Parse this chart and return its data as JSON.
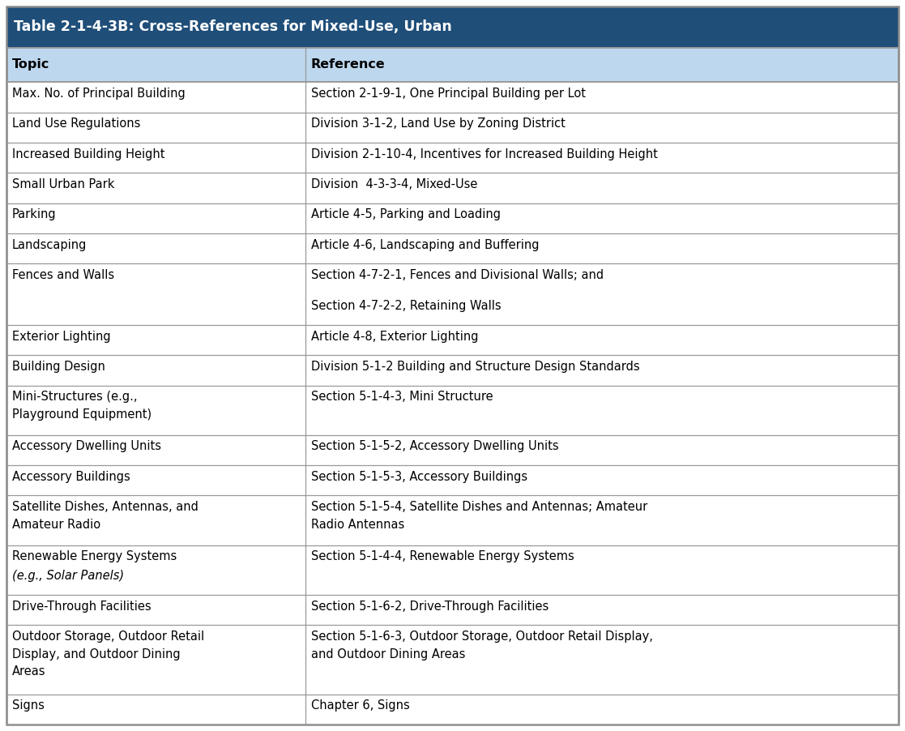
{
  "title": "Table 2-1-4-3B: Cross-References for Mixed-Use, Urban",
  "title_bg": "#1f4e79",
  "title_color": "#ffffff",
  "header_bg": "#bdd7ee",
  "header_color": "#000000",
  "col1_header": "Topic",
  "col2_header": "Reference",
  "border_color": "#999999",
  "outer_border_color": "#888888",
  "col_split": 0.335,
  "font_size": 10.5,
  "title_font_size": 12.5,
  "header_font_size": 11.5,
  "rows": [
    {
      "col1": "Max. No. of Principal Building",
      "col2": "Section 2-1-9-1, One Principal Building per Lot",
      "col1_lines": 1,
      "col2_lines": 1
    },
    {
      "col1": "Land Use Regulations",
      "col2": "Division 3-1-2, Land Use by Zoning District",
      "col1_lines": 1,
      "col2_lines": 1
    },
    {
      "col1": "Increased Building Height",
      "col2": "Division 2-1-10-4, Incentives for Increased Building Height",
      "col1_lines": 1,
      "col2_lines": 1
    },
    {
      "col1": "Small Urban Park",
      "col2": "Division  4-3-3-4, Mixed-Use",
      "col1_lines": 1,
      "col2_lines": 1
    },
    {
      "col1": "Parking",
      "col2": "Article 4-5, Parking and Loading",
      "col1_lines": 1,
      "col2_lines": 1
    },
    {
      "col1": "Landscaping",
      "col2": "Article 4-6, Landscaping and Buffering",
      "col1_lines": 1,
      "col2_lines": 1
    },
    {
      "col1": "Fences and Walls",
      "col2": "Section 4-7-2-1, Fences and Divisional Walls; and\nSection 4-7-2-2, Retaining Walls",
      "col1_lines": 1,
      "col2_lines": 2,
      "col2_extra_gap": true
    },
    {
      "col1": "Exterior Lighting",
      "col2": "Article 4-8, Exterior Lighting",
      "col1_lines": 1,
      "col2_lines": 1
    },
    {
      "col1": "Building Design",
      "col2": "Division 5-1-2 Building and Structure Design Standards",
      "col1_lines": 1,
      "col2_lines": 1
    },
    {
      "col1": "Mini-Structures (e.g.,\nPlayground Equipment)",
      "col2": "Section 5-1-4-3, Mini Structure",
      "col1_lines": 2,
      "col2_lines": 1
    },
    {
      "col1": "Accessory Dwelling Units",
      "col2": "Section 5-1-5-2, Accessory Dwelling Units",
      "col1_lines": 1,
      "col2_lines": 1
    },
    {
      "col1": "Accessory Buildings",
      "col2": "Section 5-1-5-3, Accessory Buildings",
      "col1_lines": 1,
      "col2_lines": 1
    },
    {
      "col1": "Satellite Dishes, Antennas, and\nAmateur Radio",
      "col2": "Section 5-1-5-4, Satellite Dishes and Antennas; Amateur\nRadio Antennas",
      "col1_lines": 2,
      "col2_lines": 2
    },
    {
      "col1": "Renewable Energy Systems\n(e.g., Solar Panels)",
      "col2": "Section 5-1-4-4, Renewable Energy Systems",
      "col1_lines": 2,
      "col2_lines": 1,
      "col1_italic_line2": true
    },
    {
      "col1": "Drive-Through Facilities",
      "col2": "Section 5-1-6-2, Drive-Through Facilities",
      "col1_lines": 1,
      "col2_lines": 1
    },
    {
      "col1": "Outdoor Storage, Outdoor Retail\nDisplay, and Outdoor Dining\nAreas",
      "col2": "Section 5-1-6-3, Outdoor Storage, Outdoor Retail Display,\nand Outdoor Dining Areas",
      "col1_lines": 3,
      "col2_lines": 2
    },
    {
      "col1": "Signs",
      "col2": "Chapter 6, Signs",
      "col1_lines": 1,
      "col2_lines": 1
    }
  ]
}
